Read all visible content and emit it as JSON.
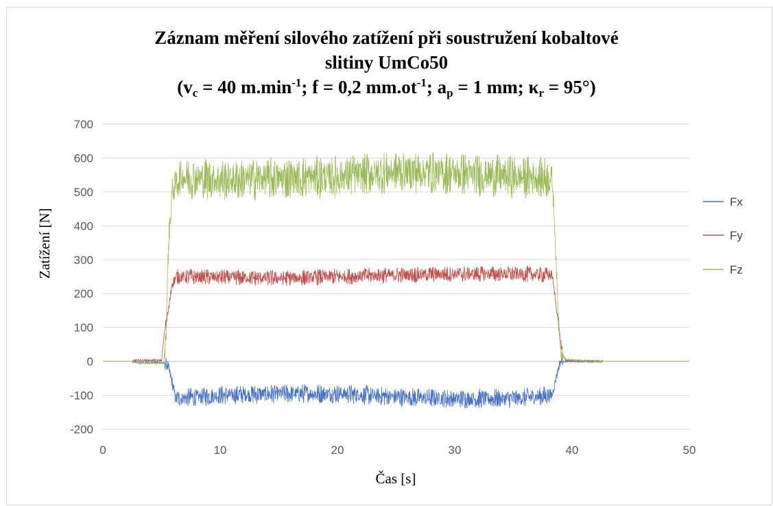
{
  "chart_data": {
    "type": "line",
    "title": "Záznam měření silového zatížení při soustružení kobaltové slitiny UmCo50",
    "title_line1": "Záznam měření silového zatížení při soustružení kobaltové",
    "title_line2": "slitiny UmCo50",
    "subtitle": "(vc = 40 m.min-1; f = 0,2 mm.ot-1; ap = 1 mm; κr = 95°)",
    "subtitle_parts": {
      "open": "(v",
      "vc_sub": "c",
      "a": " = 40 m.min",
      "sup1": "-1",
      "b": "; f = 0,2 mm.ot",
      "sup2": "-1",
      "c": "; a",
      "ap_sub": "p",
      "d": " = 1 mm; κ",
      "kr_sub": "r",
      "e": " = 95°)"
    },
    "xlabel": "Čas [s]",
    "ylabel": "Zatížení [N]",
    "xlim": [
      0,
      50
    ],
    "ylim": [
      -200,
      700
    ],
    "x_ticks": [
      "0",
      "10",
      "20",
      "30",
      "40",
      "50"
    ],
    "y_ticks": [
      "700",
      "600",
      "500",
      "400",
      "300",
      "200",
      "100",
      "0",
      "-100",
      "-200"
    ],
    "grid": "horizontal",
    "legend_position": "right",
    "series": [
      {
        "name": "Fx",
        "color": "#4472c4",
        "profile": [
          [
            0,
            0
          ],
          [
            2.5,
            0
          ],
          [
            3,
            -3
          ],
          [
            5,
            -3
          ],
          [
            5.5,
            -10
          ],
          [
            5.9,
            -60
          ],
          [
            6.2,
            -110
          ],
          [
            10,
            -100
          ],
          [
            15,
            -95
          ],
          [
            20,
            -95
          ],
          [
            25,
            -105
          ],
          [
            30,
            -110
          ],
          [
            35,
            -110
          ],
          [
            38.3,
            -100
          ],
          [
            38.7,
            -40
          ],
          [
            39,
            0
          ],
          [
            42.5,
            0
          ],
          [
            50,
            0
          ]
        ],
        "noise_amplitude": 30
      },
      {
        "name": "Fy",
        "color": "#c0504d",
        "profile": [
          [
            0,
            0
          ],
          [
            2.5,
            0
          ],
          [
            2.7,
            3
          ],
          [
            5,
            3
          ],
          [
            5.3,
            100
          ],
          [
            5.6,
            150
          ],
          [
            5.9,
            230
          ],
          [
            6.3,
            250
          ],
          [
            10,
            248
          ],
          [
            15,
            245
          ],
          [
            20,
            250
          ],
          [
            25,
            255
          ],
          [
            30,
            258
          ],
          [
            35,
            258
          ],
          [
            38.3,
            255
          ],
          [
            38.6,
            180
          ],
          [
            38.9,
            90
          ],
          [
            39.2,
            20
          ],
          [
            39.5,
            3
          ],
          [
            42.5,
            0
          ],
          [
            50,
            0
          ]
        ],
        "noise_amplitude": 25
      },
      {
        "name": "Fz",
        "color": "#9bbb59",
        "profile": [
          [
            0,
            0
          ],
          [
            2.7,
            0
          ],
          [
            2.9,
            -5
          ],
          [
            5.2,
            -5
          ],
          [
            5.4,
            100
          ],
          [
            5.6,
            350
          ],
          [
            5.9,
            500
          ],
          [
            6.5,
            545
          ],
          [
            10,
            535
          ],
          [
            15,
            540
          ],
          [
            20,
            545
          ],
          [
            25,
            560
          ],
          [
            30,
            555
          ],
          [
            35,
            545
          ],
          [
            38.3,
            540
          ],
          [
            38.5,
            420
          ],
          [
            38.8,
            150
          ],
          [
            39.1,
            20
          ],
          [
            39.5,
            5
          ],
          [
            42,
            0
          ],
          [
            50,
            0
          ]
        ],
        "noise_amplitude": 65
      }
    ]
  }
}
